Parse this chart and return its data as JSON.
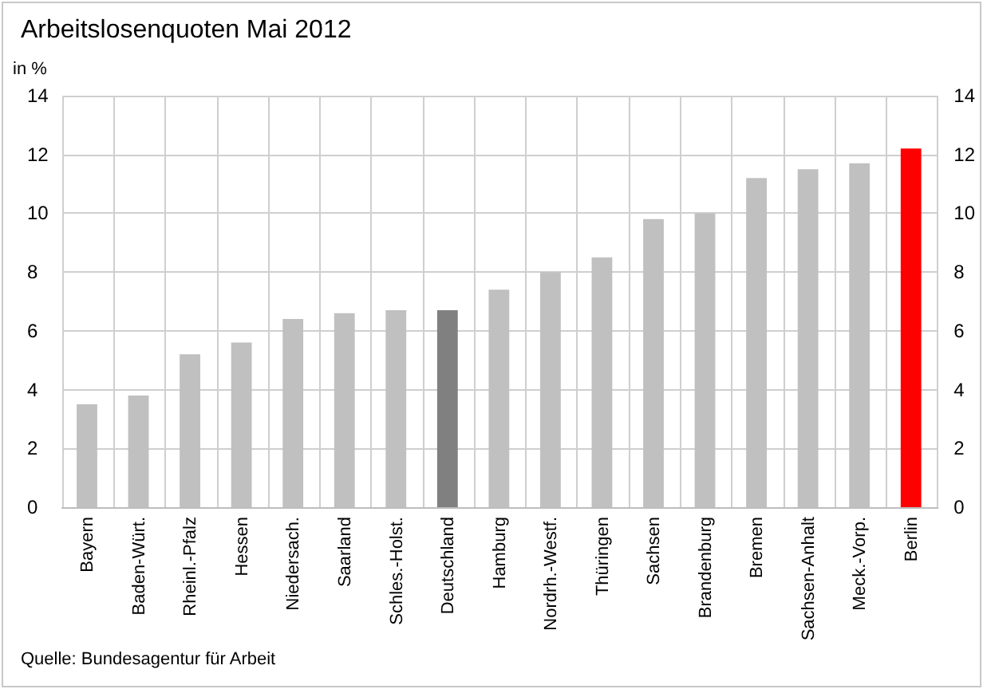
{
  "chart_data": {
    "type": "bar",
    "title": "Arbeitslosenquoten Mai 2012",
    "ylabel": "in %",
    "categories": [
      "Bayern",
      "Baden-Würt.",
      "Rheinl.-Pfalz",
      "Hessen",
      "Niedersach.",
      "Saarland",
      "Schles.-Holst.",
      "Deutschland",
      "Hamburg",
      "Nordrh.-Westf.",
      "Thüringen",
      "Sachsen",
      "Brandenburg",
      "Bremen",
      "Sachsen-Anhalt",
      "Meck.-Vorp.",
      "Berlin"
    ],
    "values": [
      3.5,
      3.8,
      5.2,
      5.6,
      6.4,
      6.6,
      6.7,
      6.7,
      7.4,
      8.0,
      8.5,
      9.8,
      10.0,
      11.2,
      11.5,
      11.7,
      12.2
    ],
    "colors": [
      "#c0c0c0",
      "#c0c0c0",
      "#c0c0c0",
      "#c0c0c0",
      "#c0c0c0",
      "#c0c0c0",
      "#c0c0c0",
      "#808080",
      "#c0c0c0",
      "#c0c0c0",
      "#c0c0c0",
      "#c0c0c0",
      "#c0c0c0",
      "#c0c0c0",
      "#c0c0c0",
      "#c0c0c0",
      "#ff0000"
    ],
    "ylim": [
      0,
      14
    ],
    "yticks": [
      0,
      2,
      4,
      6,
      8,
      10,
      12,
      14
    ],
    "y2lim": [
      0,
      14
    ],
    "y2ticks": [
      0,
      2,
      4,
      6,
      8,
      10,
      12,
      14
    ],
    "grid": true,
    "annotations": [
      "Quelle: Bundesagentur für Arbeit"
    ]
  }
}
